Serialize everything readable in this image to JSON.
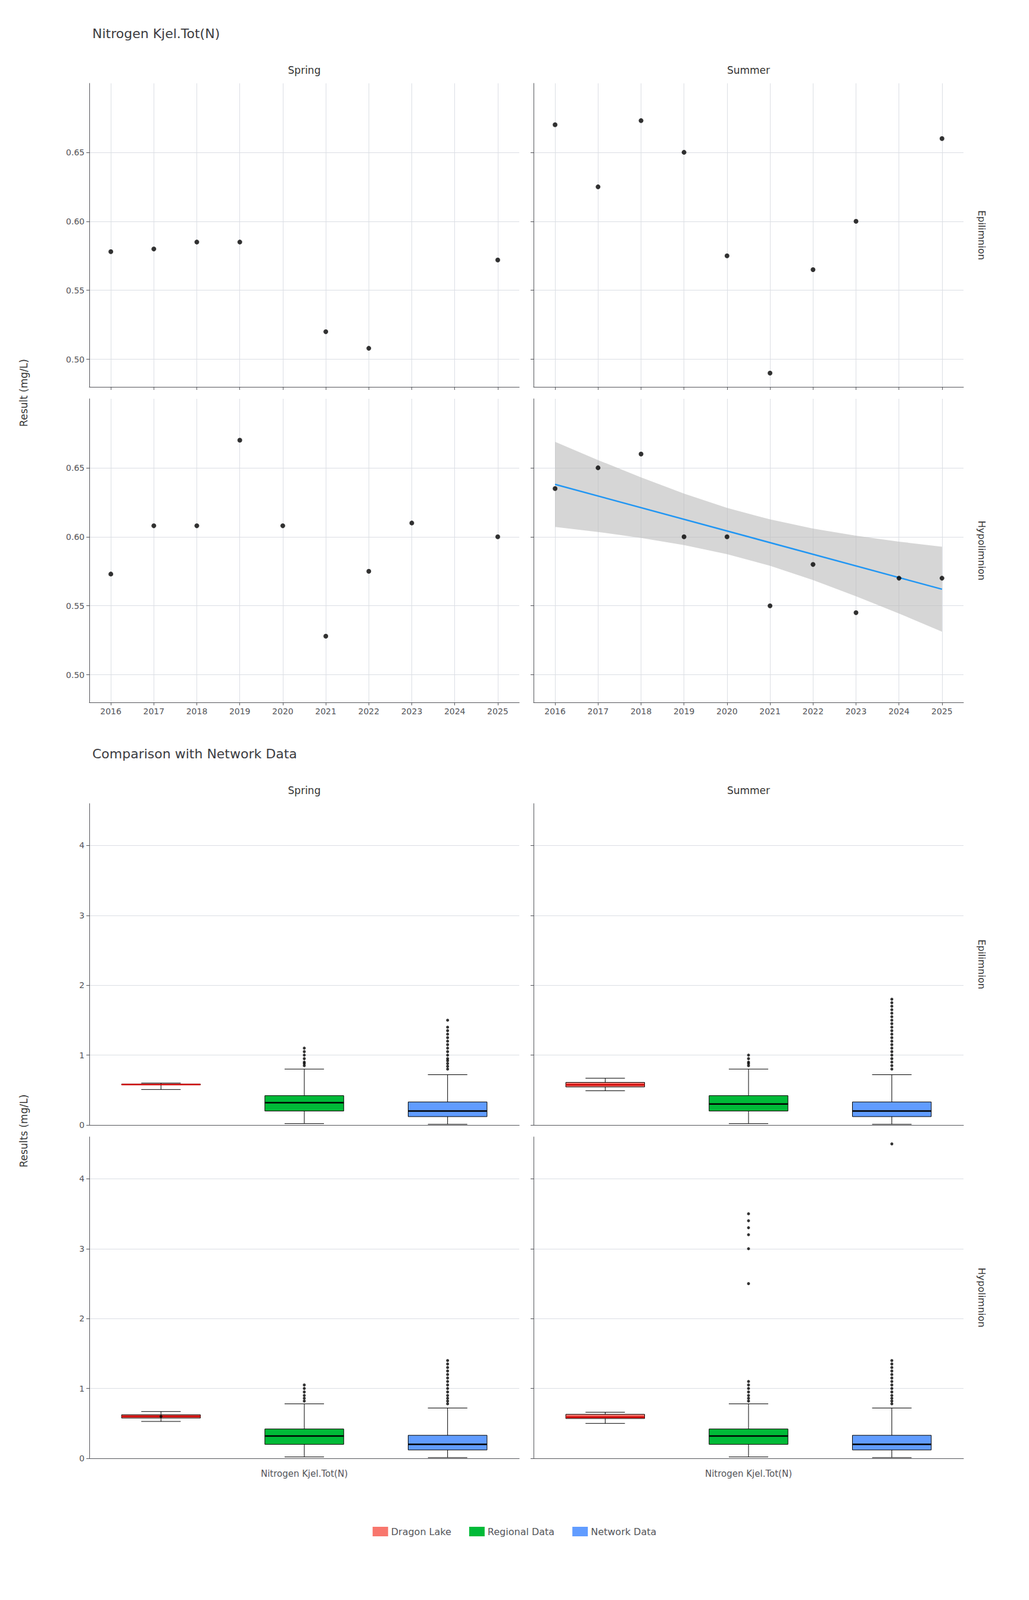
{
  "chart_data": [
    {
      "type": "scatter",
      "title": "Nitrogen Kjel.Tot(N)",
      "ylabel": "Result (mg/L)",
      "columns": [
        "Spring",
        "Summer"
      ],
      "rows": [
        "Epilimnion",
        "Hypolimnion"
      ],
      "xlim": [
        2015.5,
        2025.5
      ],
      "xticks": [
        2016,
        2017,
        2018,
        2019,
        2020,
        2021,
        2022,
        2023,
        2024,
        2025
      ],
      "ylim": [
        0.48,
        0.7
      ],
      "yticks": [
        {
          "value": 0.5,
          "label": "0.50"
        },
        0.55,
        {
          "value": 0.6,
          "label": "0.60"
        },
        0.65
      ],
      "grid": true,
      "color": "#000000",
      "panels": [
        {
          "column": "Spring",
          "row": "Epilimnion",
          "x": [
            2016,
            2017,
            2018,
            2019,
            2021,
            2022,
            2025
          ],
          "y": [
            0.578,
            0.58,
            0.585,
            0.585,
            0.52,
            0.508,
            0.572
          ]
        },
        {
          "column": "Summer",
          "row": "Epilimnion",
          "x": [
            2016,
            2017,
            2018,
            2019,
            2020,
            2021,
            2022,
            2023,
            2025
          ],
          "y": [
            0.67,
            0.625,
            0.673,
            0.65,
            0.575,
            0.49,
            0.565,
            0.6,
            0.66
          ]
        },
        {
          "column": "Spring",
          "row": "Hypolimnion",
          "x": [
            2016,
            2017,
            2018,
            2019,
            2020,
            2021,
            2022,
            2023,
            2025
          ],
          "y": [
            0.573,
            0.608,
            0.608,
            0.67,
            0.608,
            0.528,
            0.575,
            0.61,
            0.6
          ]
        },
        {
          "column": "Summer",
          "row": "Hypolimnion",
          "x": [
            2016,
            2017,
            2018,
            2019,
            2020,
            2021,
            2022,
            2023,
            2024,
            2025
          ],
          "y": [
            0.635,
            0.65,
            0.66,
            0.6,
            0.6,
            0.55,
            0.58,
            0.545,
            0.57,
            0.57
          ],
          "trend": {
            "x": [
              2016,
              2025
            ],
            "y": [
              0.638,
              0.562
            ],
            "color": "#2196F3"
          },
          "band": {
            "x": [
              2016,
              2017,
              2018,
              2019,
              2020,
              2021,
              2022,
              2023,
              2024,
              2025
            ],
            "lower": [
              0.6072,
              0.6035,
              0.5992,
              0.594,
              0.5874,
              0.579,
              0.5687,
              0.5569,
              0.5444,
              0.5312
            ],
            "upper": [
              0.6688,
              0.6556,
              0.6431,
              0.6313,
              0.621,
              0.6126,
              0.606,
              0.6008,
              0.5965,
              0.5928
            ],
            "color": "#bbbbbb"
          }
        }
      ]
    },
    {
      "type": "box",
      "title": "Comparison with Network Data",
      "ylabel": "Results (mg/L)",
      "xlabel": "Nitrogen Kjel.Tot(N)",
      "columns": [
        "Spring",
        "Summer"
      ],
      "rows": [
        "Epilimnion",
        "Hypolimnion"
      ],
      "ylim": [
        0,
        4.6
      ],
      "yticks": [
        0,
        1,
        2,
        3,
        4
      ],
      "grid": "y",
      "legend": "bottom",
      "series": [
        {
          "name": "Dragon Lake",
          "color": "#f8766d",
          "median_color": "#cc0000"
        },
        {
          "name": "Regional Data",
          "color": "#00ba38",
          "median_color": "#000000"
        },
        {
          "name": "Network Data",
          "color": "#619cff",
          "median_color": "#000000"
        }
      ],
      "panels": [
        {
          "column": "Spring",
          "row": "Epilimnion",
          "boxes": [
            {
              "median": 0.58,
              "q1": 0.575,
              "q3": 0.585,
              "whislo": 0.508,
              "whishi": 0.6,
              "fliers": []
            },
            {
              "median": 0.32,
              "q1": 0.2,
              "q3": 0.42,
              "whislo": 0.02,
              "whishi": 0.8,
              "fliers": [
                0.85,
                0.88,
                0.9,
                0.95,
                1.0,
                1.05,
                1.1
              ]
            },
            {
              "median": 0.2,
              "q1": 0.12,
              "q3": 0.33,
              "whislo": 0.01,
              "whishi": 0.72,
              "fliers": [
                0.8,
                0.84,
                0.88,
                0.92,
                0.95,
                1.0,
                1.05,
                1.1,
                1.15,
                1.2,
                1.25,
                1.3,
                1.35,
                1.4,
                1.5
              ]
            }
          ]
        },
        {
          "column": "Summer",
          "row": "Epilimnion",
          "boxes": [
            {
              "median": 0.575,
              "q1": 0.545,
              "q3": 0.61,
              "whislo": 0.49,
              "whishi": 0.67,
              "fliers": []
            },
            {
              "median": 0.3,
              "q1": 0.2,
              "q3": 0.42,
              "whislo": 0.02,
              "whishi": 0.8,
              "fliers": [
                0.85,
                0.88,
                0.9,
                0.95,
                1.0
              ]
            },
            {
              "median": 0.2,
              "q1": 0.12,
              "q3": 0.33,
              "whislo": 0.01,
              "whishi": 0.72,
              "fliers": [
                0.8,
                0.85,
                0.9,
                0.95,
                1.0,
                1.05,
                1.1,
                1.15,
                1.2,
                1.25,
                1.3,
                1.35,
                1.4,
                1.45,
                1.5,
                1.55,
                1.6,
                1.65,
                1.7,
                1.75,
                1.8
              ]
            }
          ]
        },
        {
          "column": "Spring",
          "row": "Hypolimnion",
          "boxes": [
            {
              "median": 0.6,
              "q1": 0.577,
              "q3": 0.623,
              "whislo": 0.528,
              "whishi": 0.67,
              "fliers": [
                0.6
              ]
            },
            {
              "median": 0.32,
              "q1": 0.2,
              "q3": 0.42,
              "whislo": 0.02,
              "whishi": 0.78,
              "fliers": [
                0.82,
                0.86,
                0.9,
                0.95,
                1.0,
                1.05
              ]
            },
            {
              "median": 0.2,
              "q1": 0.12,
              "q3": 0.33,
              "whislo": 0.01,
              "whishi": 0.72,
              "fliers": [
                0.78,
                0.82,
                0.86,
                0.9,
                0.95,
                1.0,
                1.05,
                1.1,
                1.15,
                1.2,
                1.25,
                1.3,
                1.35,
                1.4
              ]
            }
          ]
        },
        {
          "column": "Summer",
          "row": "Hypolimnion",
          "boxes": [
            {
              "median": 0.59,
              "q1": 0.57,
              "q3": 0.63,
              "whislo": 0.5,
              "whishi": 0.66,
              "fliers": []
            },
            {
              "median": 0.32,
              "q1": 0.2,
              "q3": 0.42,
              "whislo": 0.02,
              "whishi": 0.78,
              "fliers": [
                0.82,
                0.86,
                0.9,
                0.95,
                1.0,
                1.05,
                1.1,
                2.5,
                3.0,
                3.2,
                3.3,
                3.4,
                3.5
              ]
            },
            {
              "median": 0.2,
              "q1": 0.12,
              "q3": 0.33,
              "whislo": 0.01,
              "whishi": 0.72,
              "fliers": [
                0.78,
                0.82,
                0.86,
                0.9,
                0.95,
                1.0,
                1.05,
                1.1,
                1.15,
                1.2,
                1.25,
                1.3,
                1.35,
                1.4,
                4.5
              ]
            }
          ]
        }
      ]
    }
  ]
}
